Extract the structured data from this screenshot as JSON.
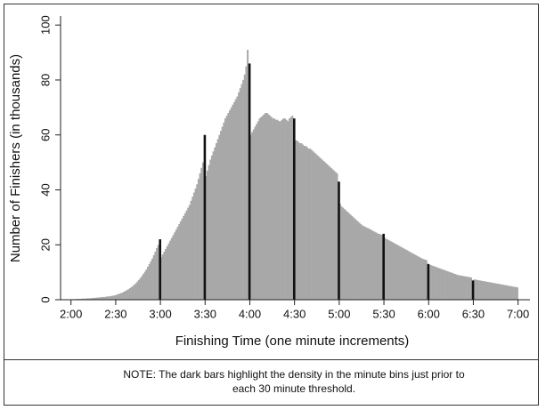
{
  "chart_data": {
    "type": "histogram",
    "xlabel": "Finishing Time (one minute increments)",
    "ylabel": "Number of Finishers (in thousands)",
    "note": [
      "NOTE: The dark bars highlight the density in the minute bins just prior to",
      "each 30 minute threshold."
    ],
    "bins": [
      120,
      121,
      122,
      123,
      124,
      125,
      126,
      127,
      128,
      129,
      130,
      131,
      132,
      133,
      134,
      135,
      136,
      137,
      138,
      139,
      140,
      141,
      142,
      143,
      144,
      145,
      146,
      147,
      148,
      149,
      150,
      151,
      152,
      153,
      154,
      155,
      156,
      157,
      158,
      159,
      160,
      161,
      162,
      163,
      164,
      165,
      166,
      167,
      168,
      169,
      170,
      171,
      172,
      173,
      174,
      175,
      176,
      177,
      178,
      179,
      180,
      181,
      182,
      183,
      184,
      185,
      186,
      187,
      188,
      189,
      190,
      191,
      192,
      193,
      194,
      195,
      196,
      197,
      198,
      199,
      200,
      201,
      202,
      203,
      204,
      205,
      206,
      207,
      208,
      209,
      210,
      211,
      212,
      213,
      214,
      215,
      216,
      217,
      218,
      219,
      220,
      221,
      222,
      223,
      224,
      225,
      226,
      227,
      228,
      229,
      230,
      231,
      232,
      233,
      234,
      235,
      236,
      237,
      238,
      239,
      240,
      241,
      242,
      243,
      244,
      245,
      246,
      247,
      248,
      249,
      250,
      251,
      252,
      253,
      254,
      255,
      256,
      257,
      258,
      259,
      260,
      261,
      262,
      263,
      264,
      265,
      266,
      267,
      268,
      269,
      270,
      271,
      272,
      273,
      274,
      275,
      276,
      277,
      278,
      279,
      280,
      281,
      282,
      283,
      284,
      285,
      286,
      287,
      288,
      289,
      290,
      291,
      292,
      293,
      294,
      295,
      296,
      297,
      298,
      299,
      300,
      301,
      302,
      303,
      304,
      305,
      306,
      307,
      308,
      309,
      310,
      311,
      312,
      313,
      314,
      315,
      316,
      317,
      318,
      319,
      320,
      321,
      322,
      323,
      324,
      325,
      326,
      327,
      328,
      329,
      330,
      331,
      332,
      333,
      334,
      335,
      336,
      337,
      338,
      339,
      340,
      341,
      342,
      343,
      344,
      345,
      346,
      347,
      348,
      349,
      350,
      351,
      352,
      353,
      354,
      355,
      356,
      357,
      358,
      359,
      360,
      361,
      362,
      363,
      364,
      365,
      366,
      367,
      368,
      369,
      370,
      371,
      372,
      373,
      374,
      375,
      376,
      377,
      378,
      379,
      380,
      381,
      382,
      383,
      384,
      385,
      386,
      387,
      388,
      389,
      390,
      391,
      392,
      393,
      394,
      395,
      396,
      397,
      398,
      399,
      400,
      401,
      402,
      403,
      404,
      405,
      406,
      407,
      408,
      409,
      410,
      411,
      412,
      413,
      414,
      415,
      416,
      417,
      418,
      419,
      420
    ],
    "series": [
      {
        "color": "#a8a8a8",
        "values": [
          0.2,
          0.2,
          0.2,
          0.3,
          0.3,
          0.3,
          0.3,
          0.4,
          0.4,
          0.4,
          0.5,
          0.5,
          0.5,
          0.6,
          0.6,
          0.7,
          0.7,
          0.8,
          0.8,
          0.9,
          0.9,
          1.0,
          1.0,
          1.1,
          1.2,
          1.2,
          1.3,
          1.4,
          1.5,
          1.6,
          1.8,
          2.0,
          2.2,
          2.4,
          2.6,
          2.9,
          3.2,
          3.5,
          3.8,
          4.2,
          4.6,
          5.0,
          5.5,
          6.0,
          6.6,
          7.2,
          7.9,
          8.6,
          9.4,
          10.2,
          11.0,
          12.0,
          13.0,
          14.0,
          15.0,
          16.2,
          17.5,
          18.8,
          20.0,
          null,
          15.5,
          16.5,
          17.5,
          18.5,
          19.5,
          20.5,
          21.5,
          22.5,
          23.5,
          24.5,
          25.5,
          26.5,
          27.5,
          28.5,
          29.5,
          30.5,
          31.5,
          32.5,
          33.5,
          34.5,
          36,
          37.5,
          39,
          40.5,
          42,
          44,
          46,
          48,
          50,
          null,
          45,
          47,
          49,
          51,
          52.5,
          54,
          55.5,
          57,
          58.5,
          60,
          61.5,
          63,
          64.5,
          66,
          67,
          68,
          69,
          70,
          71,
          72,
          73,
          74,
          75.5,
          77,
          78.5,
          80,
          82,
          85,
          91,
          null,
          60,
          61,
          62,
          63,
          64,
          65,
          66,
          66.5,
          67,
          67.5,
          68,
          68,
          67.5,
          67,
          66.5,
          66,
          66,
          65.5,
          65.5,
          65,
          65,
          65.5,
          66,
          66,
          65.5,
          65,
          66,
          66.5,
          67,
          null,
          58,
          58,
          57.5,
          57,
          57,
          56.5,
          56,
          56,
          55.5,
          55,
          55,
          54.5,
          54,
          53.5,
          53,
          52.5,
          52,
          51.5,
          51,
          50.5,
          50,
          49.5,
          49,
          48.5,
          48,
          47.5,
          47,
          46.5,
          46,
          null,
          35,
          34,
          33.5,
          33,
          32.5,
          32,
          31.5,
          31,
          30.5,
          30,
          29.5,
          29,
          28.5,
          28,
          27.5,
          27,
          26.8,
          26.5,
          26.2,
          26,
          25.7,
          25.4,
          25.1,
          24.8,
          24.5,
          24.2,
          24,
          23.8,
          23.6,
          null,
          22.5,
          22.2,
          21.9,
          21.6,
          21.3,
          21,
          20.7,
          20.4,
          20.1,
          19.8,
          19.5,
          19.2,
          18.9,
          18.6,
          18.3,
          18,
          17.7,
          17.4,
          17.1,
          16.8,
          16.5,
          16.2,
          15.9,
          15.6,
          15.3,
          15,
          14.8,
          14.6,
          14.4,
          null,
          12.8,
          12.6,
          12.4,
          12.2,
          12,
          11.8,
          11.6,
          11.4,
          11.2,
          11,
          10.8,
          10.6,
          10.4,
          10.2,
          10,
          9.8,
          9.6,
          9.4,
          9.2,
          9,
          8.9,
          8.8,
          8.7,
          8.6,
          8.5,
          8.4,
          8.3,
          8.2,
          8.1,
          null,
          7.4,
          7.3,
          7.2,
          7.1,
          7,
          6.9,
          6.8,
          6.7,
          6.6,
          6.5,
          6.4,
          6.3,
          6.2,
          6.1,
          6,
          5.9,
          5.8,
          5.7,
          5.6,
          5.5,
          5.4,
          5.3,
          5.2,
          5.1,
          5,
          4.9,
          4.8,
          4.7,
          4.6,
          4.5
        ]
      },
      {
        "color": "#111111",
        "x": [
          179,
          209,
          239,
          269,
          299,
          329,
          359,
          389
        ],
        "values": [
          22,
          60,
          86,
          66,
          43,
          24,
          13,
          7
        ]
      }
    ],
    "xlim": [
      113,
      428
    ],
    "ylim": [
      0,
      102
    ],
    "xticks": [
      {
        "value": 120,
        "label": "2:00"
      },
      {
        "value": 150,
        "label": "2:30"
      },
      {
        "value": 180,
        "label": "3:00"
      },
      {
        "value": 210,
        "label": "3:30"
      },
      {
        "value": 240,
        "label": "4:00"
      },
      {
        "value": 270,
        "label": "4:30"
      },
      {
        "value": 300,
        "label": "5:00"
      },
      {
        "value": 330,
        "label": "5:30"
      },
      {
        "value": 360,
        "label": "6:00"
      },
      {
        "value": 390,
        "label": "6:30"
      },
      {
        "value": 420,
        "label": "7:00"
      }
    ],
    "yticks": [
      0,
      20,
      40,
      60,
      80,
      100
    ]
  }
}
